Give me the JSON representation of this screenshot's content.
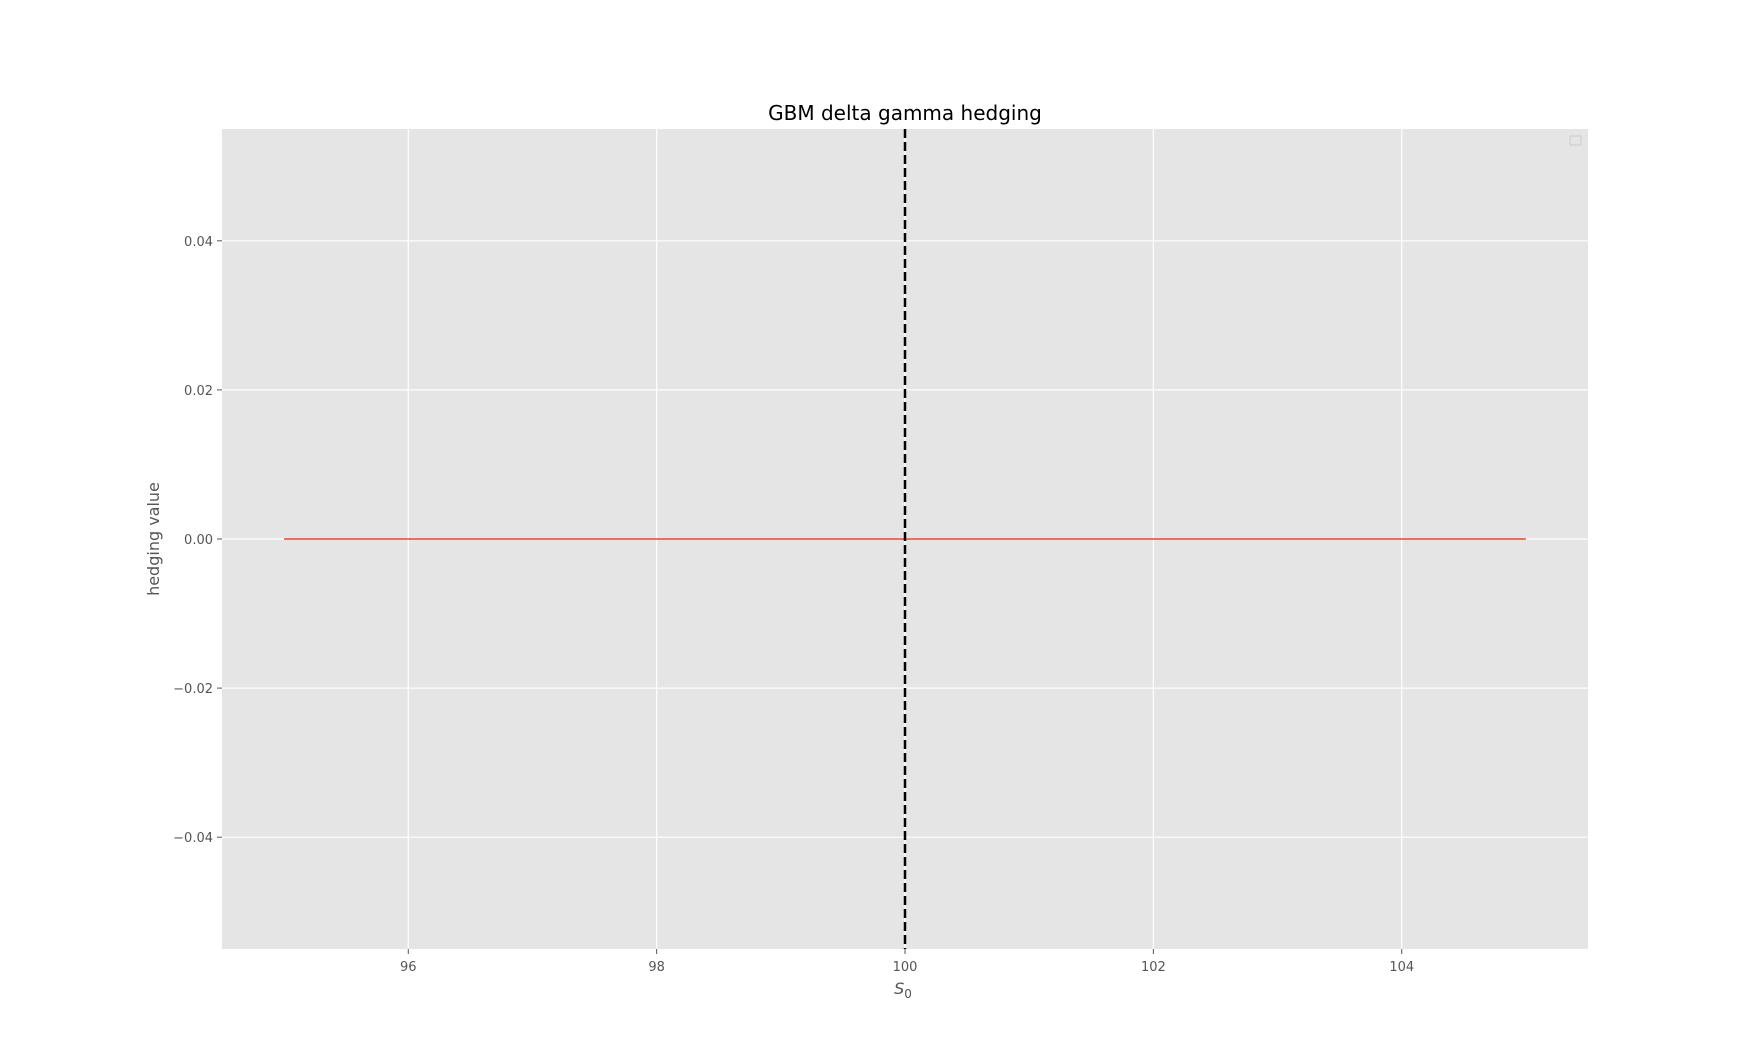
{
  "chart_data": {
    "type": "line",
    "title": "GBM delta gamma hedging",
    "xlabel_main": "S",
    "xlabel_sub": "0",
    "ylabel": "hedging value",
    "xlim": [
      94.5,
      105.5
    ],
    "ylim": [
      -0.055,
      0.055
    ],
    "xticks": [
      96,
      98,
      100,
      102,
      104
    ],
    "xtick_labels": [
      "96",
      "98",
      "100",
      "102",
      "104"
    ],
    "yticks": [
      -0.04,
      -0.02,
      0.0,
      0.02,
      0.04
    ],
    "ytick_labels": [
      "−0.04",
      "−0.02",
      "0.00",
      "0.02",
      "0.04"
    ],
    "grid": true,
    "legend": "upper-right (empty)",
    "series": [
      {
        "x": [
          95,
          96,
          97,
          98,
          99,
          100,
          101,
          102,
          103,
          104,
          105
        ],
        "y": [
          0,
          0,
          0,
          0,
          0,
          0,
          0,
          0,
          0,
          0,
          0
        ],
        "color": "#E24A33"
      }
    ],
    "vline": {
      "x": 100,
      "style": "dashed",
      "color": "#000000"
    },
    "colors": {
      "axes_bg": "#E5E5E5",
      "grid": "#FFFFFF",
      "tick": "#555555"
    }
  }
}
